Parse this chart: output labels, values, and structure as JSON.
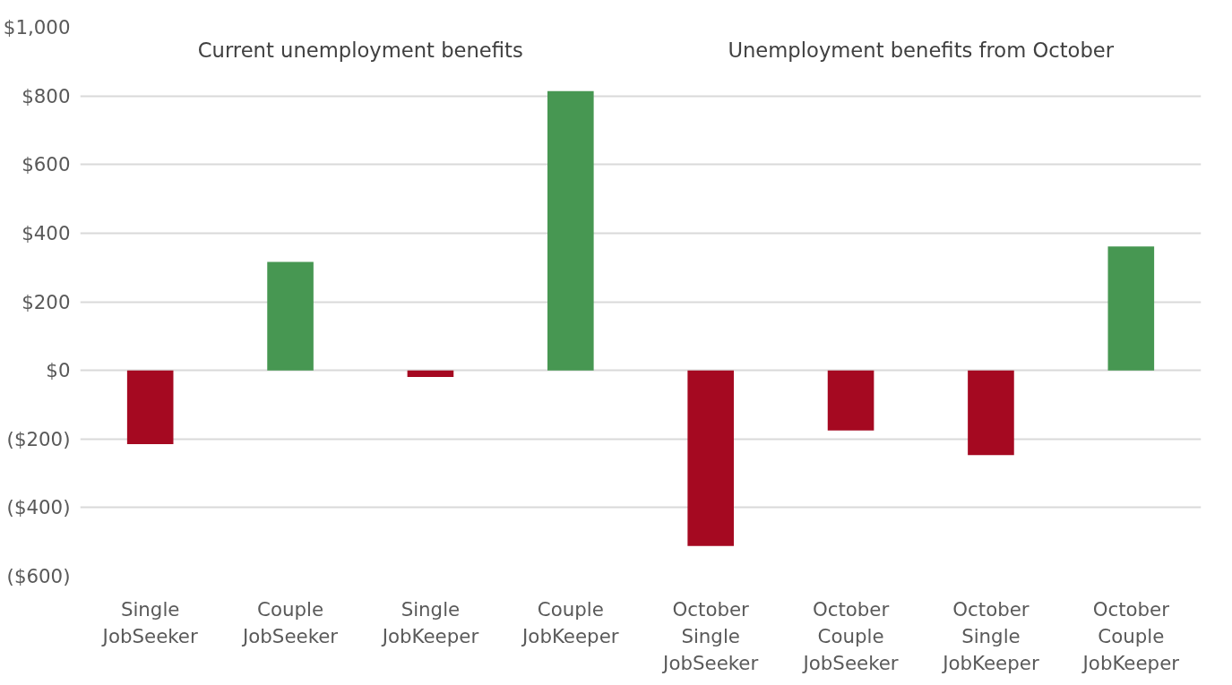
{
  "chart_data": {
    "type": "bar",
    "categories": [
      "Single\nJobSeeker",
      "Couple\nJobSeeker",
      "Single\nJobKeeper",
      "Couple\nJobKeeper",
      "October\nSingle\nJobSeeker",
      "October\nCouple\nJobSeeker",
      "October\nSingle\nJobKeeper",
      "October\nCouple\nJobKeeper"
    ],
    "values": [
      -215,
      316,
      -19,
      814,
      -512,
      -175,
      -247,
      361
    ],
    "colors": [
      "#a50921",
      "#479752",
      "#a50921",
      "#479752",
      "#a50921",
      "#a50921",
      "#a50921",
      "#479752"
    ],
    "ylim": [
      -600,
      1000
    ],
    "yticks": [
      {
        "value": -600,
        "label": "($600)"
      },
      {
        "value": -400,
        "label": "($400)"
      },
      {
        "value": -200,
        "label": "($200)"
      },
      {
        "value": 0,
        "label": "$0"
      },
      {
        "value": 200,
        "label": "$200"
      },
      {
        "value": 400,
        "label": "$400"
      },
      {
        "value": 600,
        "label": "$600"
      },
      {
        "value": 800,
        "label": "$800"
      },
      {
        "value": 1000,
        "label": "$1,000"
      }
    ],
    "grid": "y",
    "annotations": [
      "Current unemployment benefits",
      "Unemployment benefits from October"
    ]
  }
}
